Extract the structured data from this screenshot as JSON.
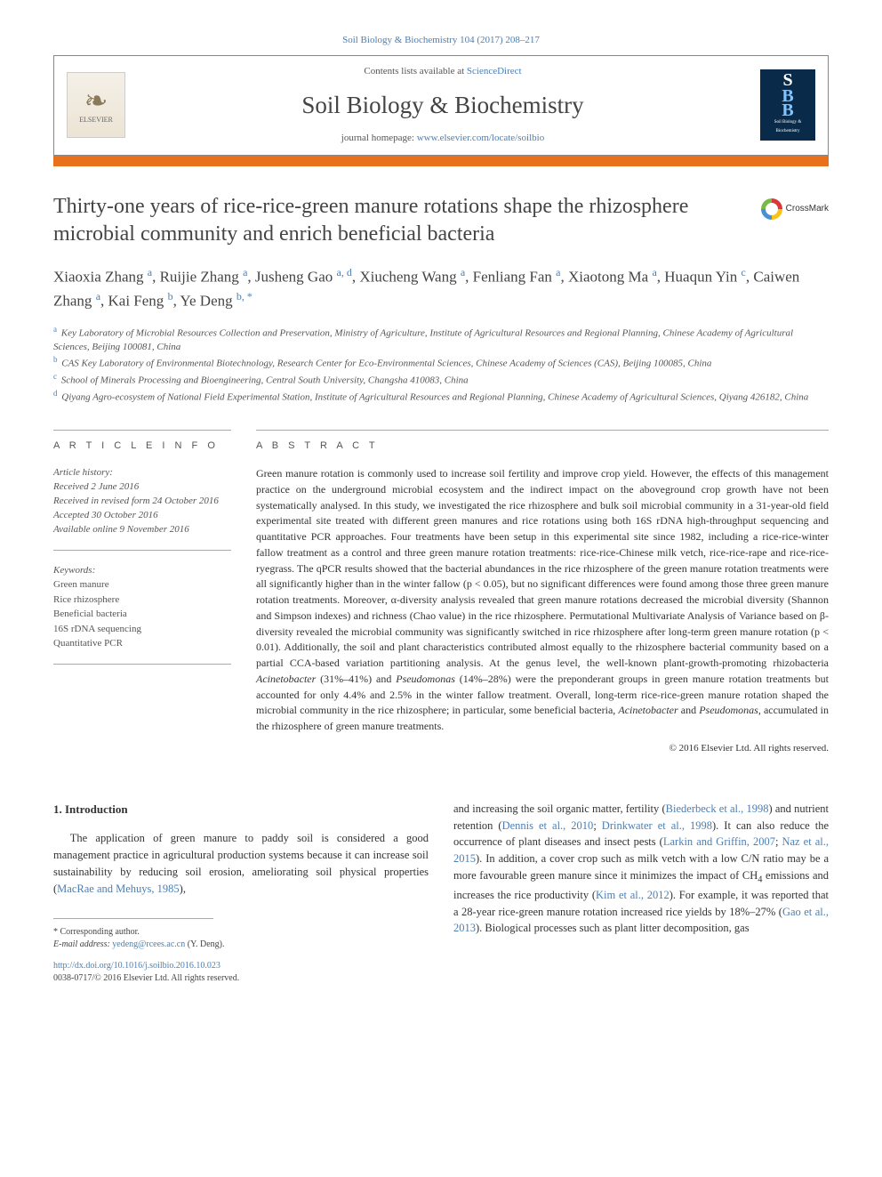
{
  "citation": "Soil Biology & Biochemistry 104 (2017) 208–217",
  "header": {
    "contents_prefix": "Contents lists available at ",
    "contents_link": "ScienceDirect",
    "journal": "Soil Biology & Biochemistry",
    "homepage_prefix": "journal homepage: ",
    "homepage_link": "www.elsevier.com/locate/soilbio",
    "publisher": "ELSEVIER"
  },
  "crossmark_label": "CrossMark",
  "title": "Thirty-one years of rice-rice-green manure rotations shape the rhizosphere microbial community and enrich beneficial bacteria",
  "authors_html_parts": [
    {
      "name": "Xiaoxia Zhang",
      "aff": "a"
    },
    {
      "name": "Ruijie Zhang",
      "aff": "a"
    },
    {
      "name": "Jusheng Gao",
      "aff": "a, d"
    },
    {
      "name": "Xiucheng Wang",
      "aff": "a"
    },
    {
      "name": "Fenliang Fan",
      "aff": "a"
    },
    {
      "name": "Xiaotong Ma",
      "aff": "a"
    },
    {
      "name": "Huaqun Yin",
      "aff": "c"
    },
    {
      "name": "Caiwen Zhang",
      "aff": "a"
    },
    {
      "name": "Kai Feng",
      "aff": "b"
    },
    {
      "name": "Ye Deng",
      "aff": "b, *"
    }
  ],
  "affiliations": [
    {
      "lbl": "a",
      "text": "Key Laboratory of Microbial Resources Collection and Preservation, Ministry of Agriculture, Institute of Agricultural Resources and Regional Planning, Chinese Academy of Agricultural Sciences, Beijing 100081, China"
    },
    {
      "lbl": "b",
      "text": "CAS Key Laboratory of Environmental Biotechnology, Research Center for Eco-Environmental Sciences, Chinese Academy of Sciences (CAS), Beijing 100085, China"
    },
    {
      "lbl": "c",
      "text": "School of Minerals Processing and Bioengineering, Central South University, Changsha 410083, China"
    },
    {
      "lbl": "d",
      "text": "Qiyang Agro-ecosystem of National Field Experimental Station, Institute of Agricultural Resources and Regional Planning, Chinese Academy of Agricultural Sciences, Qiyang 426182, China"
    }
  ],
  "info_heading": "A R T I C L E   I N F O",
  "abstract_heading": "A B S T R A C T",
  "history": {
    "label": "Article history:",
    "received": "Received 2 June 2016",
    "revised": "Received in revised form 24 October 2016",
    "accepted": "Accepted 30 October 2016",
    "online": "Available online 9 November 2016"
  },
  "keywords": {
    "label": "Keywords:",
    "items": [
      "Green manure",
      "Rice rhizosphere",
      "Beneficial bacteria",
      "16S rDNA sequencing",
      "Quantitative PCR"
    ]
  },
  "abstract": "Green manure rotation is commonly used to increase soil fertility and improve crop yield. However, the effects of this management practice on the underground microbial ecosystem and the indirect impact on the aboveground crop growth have not been systematically analysed. In this study, we investigated the rice rhizosphere and bulk soil microbial community in a 31-year-old field experimental site treated with different green manures and rice rotations using both 16S rDNA high-throughput sequencing and quantitative PCR approaches. Four treatments have been setup in this experimental site since 1982, including a rice-rice-winter fallow treatment as a control and three green manure rotation treatments: rice-rice-Chinese milk vetch, rice-rice-rape and rice-rice-ryegrass. The qPCR results showed that the bacterial abundances in the rice rhizosphere of the green manure rotation treatments were all significantly higher than in the winter fallow (p < 0.05), but no significant differences were found among those three green manure rotation treatments. Moreover, α-diversity analysis revealed that green manure rotations decreased the microbial diversity (Shannon and Simpson indexes) and richness (Chao value) in the rice rhizosphere. Permutational Multivariate Analysis of Variance based on β-diversity revealed the microbial community was significantly switched in rice rhizosphere after long-term green manure rotation (p < 0.01). Additionally, the soil and plant characteristics contributed almost equally to the rhizosphere bacterial community based on a partial CCA-based variation partitioning analysis. At the genus level, the well-known plant-growth-promoting rhizobacteria Acinetobacter (31%–41%) and Pseudomonas (14%–28%) were the preponderant groups in green manure rotation treatments but accounted for only 4.4% and 2.5% in the winter fallow treatment. Overall, long-term rice-rice-green manure rotation shaped the microbial community in the rice rhizosphere; in particular, some beneficial bacteria, Acinetobacter and Pseudomonas, accumulated in the rhizosphere of green manure treatments.",
  "copyright": "© 2016 Elsevier Ltd. All rights reserved.",
  "intro": {
    "heading": "1.  Introduction",
    "left": "The application of green manure to paddy soil is considered a good management practice in agricultural production systems because it can increase soil sustainability by reducing soil erosion, ameliorating soil physical properties (MacRae and Mehuys, 1985),",
    "right": "and increasing the soil organic matter, fertility (Biederbeck et al., 1998) and nutrient retention (Dennis et al., 2010; Drinkwater et al., 1998). It can also reduce the occurrence of plant diseases and insect pests (Larkin and Griffin, 2007; Naz et al., 2015). In addition, a cover crop such as milk vetch with a low C/N ratio may be a more favourable green manure since it minimizes the impact of CH4 emissions and increases the rice productivity (Kim et al., 2012). For example, it was reported that a 28-year rice-green manure rotation increased rice yields by 18%–27% (Gao et al., 2013). Biological processes such as plant litter decomposition, gas"
  },
  "intro_citations_left": [
    "MacRae and Mehuys, 1985"
  ],
  "intro_citations_right": [
    "Biederbeck et al., 1998",
    "Dennis et al., 2010",
    "Drinkwater et al., 1998",
    "Larkin and Griffin, 2007",
    "Naz et al., 2015",
    "Kim et al., 2012",
    "Gao et al., 2013"
  ],
  "footnotes": {
    "corresponding": "* Corresponding author.",
    "email_label": "E-mail address:",
    "email": "yedeng@rcees.ac.cn",
    "email_person": "(Y. Deng)."
  },
  "doi": {
    "url": "http://dx.doi.org/10.1016/j.soilbio.2016.10.023",
    "issn_line": "0038-0717/© 2016 Elsevier Ltd. All rights reserved."
  },
  "colors": {
    "link": "#4a7fb5",
    "orange_bar": "#e9711c",
    "text": "#333333",
    "muted": "#555555",
    "rule": "#aaaaaa"
  }
}
